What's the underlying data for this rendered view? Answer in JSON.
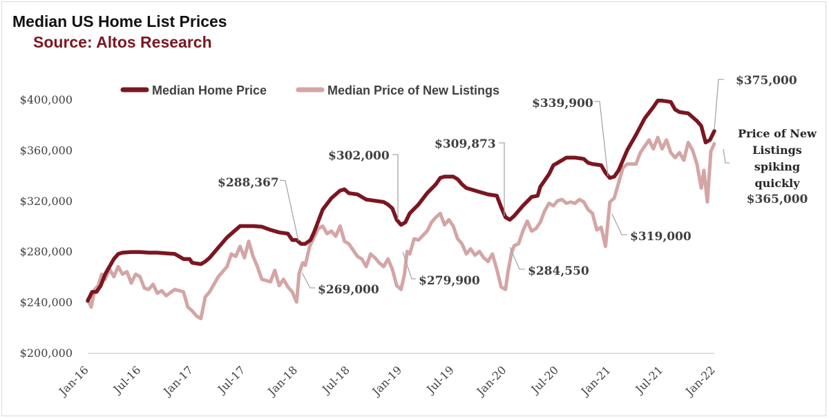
{
  "chart_data": {
    "type": "line",
    "title": "Median US Home List Prices",
    "subtitle": "Source: Altos Research",
    "xlabel": "",
    "ylabel": "",
    "ylim": [
      200000,
      400000
    ],
    "xlim": [
      0,
      72
    ],
    "grid": false,
    "legend_position": "top",
    "y_ticks": [
      {
        "value": 200000,
        "label": "$200,000"
      },
      {
        "value": 240000,
        "label": "$240,000"
      },
      {
        "value": 280000,
        "label": "$280,000"
      },
      {
        "value": 320000,
        "label": "$320,000"
      },
      {
        "value": 360000,
        "label": "$360,000"
      },
      {
        "value": 400000,
        "label": "$400,000"
      }
    ],
    "x_ticks": [
      {
        "x": 0,
        "label": "Jan-16"
      },
      {
        "x": 6,
        "label": "Jul-16"
      },
      {
        "x": 12,
        "label": "Jan-17"
      },
      {
        "x": 18,
        "label": "Jul-17"
      },
      {
        "x": 24,
        "label": "Jan-18"
      },
      {
        "x": 30,
        "label": "Jul-18"
      },
      {
        "x": 36,
        "label": "Jan-19"
      },
      {
        "x": 42,
        "label": "Jul-19"
      },
      {
        "x": 48,
        "label": "Jan-20"
      },
      {
        "x": 54,
        "label": "Jul-20"
      },
      {
        "x": 60,
        "label": "Jan-21"
      },
      {
        "x": 66,
        "label": "Jul-21"
      },
      {
        "x": 72,
        "label": "Jan-22"
      }
    ],
    "series": [
      {
        "name": "Median Home Price",
        "color": "#7b1620",
        "points": [
          [
            0,
            241000
          ],
          [
            0.5,
            248000
          ],
          [
            1,
            248000
          ],
          [
            1.5,
            253000
          ],
          [
            2,
            262000
          ],
          [
            2.5,
            268000
          ],
          [
            3,
            274000
          ],
          [
            3.5,
            278000
          ],
          [
            4,
            279000
          ],
          [
            5,
            279500
          ],
          [
            6,
            279500
          ],
          [
            7,
            279000
          ],
          [
            8,
            279000
          ],
          [
            9,
            278500
          ],
          [
            10,
            278000
          ],
          [
            10.5,
            276000
          ],
          [
            11,
            274000
          ],
          [
            11.7,
            274000
          ],
          [
            12,
            271000
          ],
          [
            13,
            270000
          ],
          [
            13.5,
            272000
          ],
          [
            14,
            275000
          ],
          [
            15,
            283000
          ],
          [
            16,
            291000
          ],
          [
            17,
            297000
          ],
          [
            17.5,
            300000
          ],
          [
            18,
            300000
          ],
          [
            19,
            300000
          ],
          [
            20,
            299500
          ],
          [
            21,
            297000
          ],
          [
            22,
            295000
          ],
          [
            23,
            294000
          ],
          [
            23.5,
            289000
          ],
          [
            24,
            289000
          ],
          [
            24.5,
            286000
          ],
          [
            25,
            286000
          ],
          [
            25.6,
            289000
          ],
          [
            26,
            295000
          ],
          [
            26.5,
            304000
          ],
          [
            27,
            313000
          ],
          [
            28,
            322000
          ],
          [
            29,
            328000
          ],
          [
            29.5,
            329000
          ],
          [
            30,
            326000
          ],
          [
            31,
            325000
          ],
          [
            32,
            321000
          ],
          [
            33,
            320000
          ],
          [
            34,
            319000
          ],
          [
            34.5,
            317000
          ],
          [
            35,
            314000
          ],
          [
            35.5,
            305000
          ],
          [
            36,
            301000
          ],
          [
            36.5,
            303000
          ],
          [
            37,
            310000
          ],
          [
            38,
            317000
          ],
          [
            39,
            326000
          ],
          [
            40,
            333000
          ],
          [
            40.5,
            338000
          ],
          [
            41,
            339000
          ],
          [
            42,
            339000
          ],
          [
            42.5,
            337000
          ],
          [
            43,
            333000
          ],
          [
            43.5,
            330000
          ],
          [
            44,
            329000
          ],
          [
            45,
            327000
          ],
          [
            46,
            325000
          ],
          [
            47,
            324000
          ],
          [
            47.5,
            315000
          ],
          [
            48,
            307000
          ],
          [
            48.5,
            305000
          ],
          [
            49,
            308000
          ],
          [
            50,
            316000
          ],
          [
            51,
            323000
          ],
          [
            51.7,
            324000
          ],
          [
            52,
            331000
          ],
          [
            53,
            341000
          ],
          [
            53.5,
            348000
          ],
          [
            54,
            350000
          ],
          [
            55,
            354000
          ],
          [
            56,
            354000
          ],
          [
            57,
            353000
          ],
          [
            57.5,
            350000
          ],
          [
            58,
            349000
          ],
          [
            59,
            348000
          ],
          [
            59.5,
            342000
          ],
          [
            60,
            338000
          ],
          [
            60.5,
            339000
          ],
          [
            61,
            344000
          ],
          [
            62,
            360000
          ],
          [
            63,
            372000
          ],
          [
            64,
            385000
          ],
          [
            65,
            394000
          ],
          [
            65.5,
            399000
          ],
          [
            66,
            399000
          ],
          [
            67,
            398000
          ],
          [
            67.5,
            392000
          ],
          [
            68,
            390000
          ],
          [
            69,
            389000
          ],
          [
            70,
            383000
          ],
          [
            70.5,
            379000
          ],
          [
            71,
            366000
          ],
          [
            71.5,
            368000
          ],
          [
            72,
            375000
          ]
        ]
      },
      {
        "name": "Median Price of New Listings",
        "color": "#d4a5a5",
        "points": [
          [
            0,
            242000
          ],
          [
            0.4,
            236000
          ],
          [
            0.8,
            250000
          ],
          [
            1.2,
            253000
          ],
          [
            1.6,
            262000
          ],
          [
            2,
            258000
          ],
          [
            2.5,
            266000
          ],
          [
            3,
            260000
          ],
          [
            3.5,
            268000
          ],
          [
            4,
            262000
          ],
          [
            4.5,
            264000
          ],
          [
            5,
            255000
          ],
          [
            5.5,
            262000
          ],
          [
            6,
            260000
          ],
          [
            6.5,
            251000
          ],
          [
            7,
            250000
          ],
          [
            7.5,
            254000
          ],
          [
            8,
            247000
          ],
          [
            8.5,
            249000
          ],
          [
            9,
            245000
          ],
          [
            10,
            250000
          ],
          [
            11,
            248000
          ],
          [
            11.5,
            236000
          ],
          [
            12,
            233000
          ],
          [
            12.5,
            229000
          ],
          [
            13,
            227000
          ],
          [
            13.5,
            244000
          ],
          [
            14,
            248000
          ],
          [
            15,
            260000
          ],
          [
            16,
            268000
          ],
          [
            16.5,
            278000
          ],
          [
            17,
            276000
          ],
          [
            17.5,
            284000
          ],
          [
            18,
            275000
          ],
          [
            18.5,
            288000
          ],
          [
            19,
            276000
          ],
          [
            19.5,
            268000
          ],
          [
            20,
            258000
          ],
          [
            21,
            256000
          ],
          [
            21.5,
            265000
          ],
          [
            22,
            253000
          ],
          [
            22.5,
            258000
          ],
          [
            23,
            252000
          ],
          [
            23.5,
            248000
          ],
          [
            24,
            240000
          ],
          [
            24.3,
            263000
          ],
          [
            24.7,
            271000
          ],
          [
            25,
            269000
          ],
          [
            25.5,
            284000
          ],
          [
            26,
            291000
          ],
          [
            26.5,
            298000
          ],
          [
            27,
            300000
          ],
          [
            27.5,
            294000
          ],
          [
            28,
            296000
          ],
          [
            28.5,
            292000
          ],
          [
            29,
            300000
          ],
          [
            29.5,
            288000
          ],
          [
            30,
            286000
          ],
          [
            30.5,
            281000
          ],
          [
            31,
            276000
          ],
          [
            31.5,
            274000
          ],
          [
            32,
            268000
          ],
          [
            32.5,
            278000
          ],
          [
            33,
            275000
          ],
          [
            33.5,
            271000
          ],
          [
            34,
            268000
          ],
          [
            34.5,
            274000
          ],
          [
            35,
            266000
          ],
          [
            35.5,
            253000
          ],
          [
            36,
            250000
          ],
          [
            36.4,
            262000
          ],
          [
            36.7,
            280000
          ],
          [
            37,
            278000
          ],
          [
            37.5,
            290000
          ],
          [
            38,
            289000
          ],
          [
            39,
            296000
          ],
          [
            39.5,
            303000
          ],
          [
            40,
            307000
          ],
          [
            40.5,
            310000
          ],
          [
            41,
            301000
          ],
          [
            41.5,
            305000
          ],
          [
            42,
            300000
          ],
          [
            42.5,
            290000
          ],
          [
            43,
            286000
          ],
          [
            43.5,
            278000
          ],
          [
            44,
            282000
          ],
          [
            44.5,
            277000
          ],
          [
            45,
            280000
          ],
          [
            45.5,
            275000
          ],
          [
            46,
            272000
          ],
          [
            46.5,
            278000
          ],
          [
            47,
            266000
          ],
          [
            47.5,
            252000
          ],
          [
            48,
            250000
          ],
          [
            48.3,
            264000
          ],
          [
            48.7,
            279000
          ],
          [
            49,
            284550
          ],
          [
            49.5,
            286000
          ],
          [
            50,
            296000
          ],
          [
            50.5,
            304000
          ],
          [
            51,
            296000
          ],
          [
            51.5,
            298000
          ],
          [
            52,
            303000
          ],
          [
            52.5,
            312000
          ],
          [
            53,
            318000
          ],
          [
            53.5,
            316000
          ],
          [
            54,
            320000
          ],
          [
            54.5,
            321000
          ],
          [
            55,
            318000
          ],
          [
            55.5,
            319000
          ],
          [
            56,
            318000
          ],
          [
            56.5,
            321000
          ],
          [
            57,
            319000
          ],
          [
            57.5,
            313000
          ],
          [
            58,
            310000
          ],
          [
            58.5,
            297000
          ],
          [
            59,
            299000
          ],
          [
            59.5,
            284000
          ],
          [
            60,
            319000
          ],
          [
            60.5,
            322000
          ],
          [
            61,
            334000
          ],
          [
            61.5,
            346000
          ],
          [
            62,
            349000
          ],
          [
            63,
            349000
          ],
          [
            63.5,
            358000
          ],
          [
            64,
            363000
          ],
          [
            64.5,
            368000
          ],
          [
            65,
            361000
          ],
          [
            65.5,
            370000
          ],
          [
            66,
            361000
          ],
          [
            66.5,
            368000
          ],
          [
            67,
            358000
          ],
          [
            67.5,
            354000
          ],
          [
            68,
            358000
          ],
          [
            68.5,
            352000
          ],
          [
            69,
            366000
          ],
          [
            69.5,
            360000
          ],
          [
            70,
            349000
          ],
          [
            70.5,
            330000
          ],
          [
            70.8,
            344000
          ],
          [
            71.2,
            319000
          ],
          [
            71.6,
            359000
          ],
          [
            72,
            365000
          ]
        ]
      }
    ],
    "annotations": [
      {
        "id": "pk-2018",
        "text": "$288,367",
        "value": 288367,
        "x": 24
      },
      {
        "id": "pk-2019",
        "text": "$302,000",
        "value": 302000,
        "x": 36
      },
      {
        "id": "pk-2020",
        "text": "$309,873",
        "value": 309873,
        "x": 48
      },
      {
        "id": "pk-2021",
        "text": "$339,900",
        "value": 339900,
        "x": 60
      },
      {
        "id": "pk-2022",
        "text": "$375,000",
        "value": 375000,
        "x": 72
      },
      {
        "id": "nl-2018",
        "text": "$269,000",
        "value": 269000,
        "x": 24.4
      },
      {
        "id": "nl-2019",
        "text": "$279,900",
        "value": 279900,
        "x": 36.5
      },
      {
        "id": "nl-2020",
        "text": "$284,550",
        "value": 284550,
        "x": 49
      },
      {
        "id": "nl-2021",
        "text": "$319,000",
        "value": 319000,
        "x": 60.2
      },
      {
        "id": "nl-2022",
        "text": "$365,000",
        "value": 365000,
        "x": 72
      }
    ],
    "note_lines": [
      "Price of New",
      "Listings",
      "spiking",
      "quickly"
    ]
  }
}
